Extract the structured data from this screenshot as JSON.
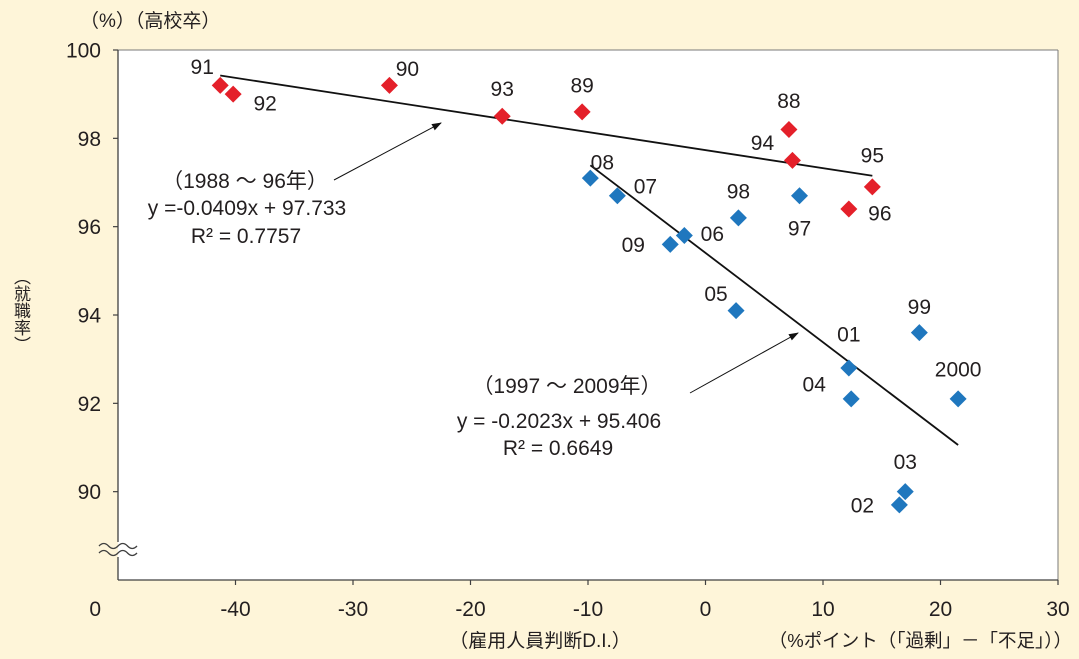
{
  "chart_data": {
    "type": "scatter",
    "unit_label": "（%）（高校卒）",
    "ylabel": "（就職率）",
    "xlabel": "（雇用人員判断D.I.）",
    "xunit_label": "（%ポイント（「過剰」－「不足」））",
    "xlim": [
      -50,
      30
    ],
    "ylim": [
      88,
      100
    ],
    "xticks": [
      -40,
      -30,
      -20,
      -10,
      0,
      10,
      20,
      30
    ],
    "yticks": [
      90,
      92,
      94,
      96,
      98,
      100
    ],
    "y_axis_break": true,
    "y_origin_label": "0",
    "grid": false,
    "series": [
      {
        "color": "#E4202A",
        "points": [
          {
            "label": "88",
            "x": 7.1,
            "y": 98.2
          },
          {
            "label": "89",
            "x": -10.5,
            "y": 98.6
          },
          {
            "label": "90",
            "x": -26.9,
            "y": 99.2
          },
          {
            "label": "91",
            "x": -41.3,
            "y": 99.2
          },
          {
            "label": "92",
            "x": -40.2,
            "y": 99.0
          },
          {
            "label": "93",
            "x": -17.3,
            "y": 98.5
          },
          {
            "label": "94",
            "x": 7.4,
            "y": 97.5
          },
          {
            "label": "95",
            "x": 14.2,
            "y": 96.9
          },
          {
            "label": "96",
            "x": 12.2,
            "y": 96.4
          }
        ],
        "trendline": {
          "period_label": "（1988 ～ 96年）",
          "equation": "y =-0.0409x + 97.733",
          "r2_label": "R² = 0.7757",
          "slope": -0.0409,
          "intercept": 97.733
        }
      },
      {
        "color": "#1F77BE",
        "points": [
          {
            "label": "97",
            "x": 8.0,
            "y": 96.7
          },
          {
            "label": "98",
            "x": 2.8,
            "y": 96.2
          },
          {
            "label": "99",
            "x": 18.2,
            "y": 93.6
          },
          {
            "label": "2000",
            "x": 21.5,
            "y": 92.1
          },
          {
            "label": "01",
            "x": 12.2,
            "y": 92.8
          },
          {
            "label": "02",
            "x": 16.5,
            "y": 89.7
          },
          {
            "label": "03",
            "x": 17.0,
            "y": 90.0
          },
          {
            "label": "04",
            "x": 12.4,
            "y": 92.1
          },
          {
            "label": "05",
            "x": 2.6,
            "y": 94.1
          },
          {
            "label": "06",
            "x": -1.8,
            "y": 95.8
          },
          {
            "label": "07",
            "x": -7.5,
            "y": 96.7
          },
          {
            "label": "08",
            "x": -9.8,
            "y": 97.1
          },
          {
            "label": "09",
            "x": -3.0,
            "y": 95.6
          }
        ],
        "trendline": {
          "period_label": "（1997 ～ 2009年）",
          "equation": "y = -0.2023x + 95.406",
          "r2_label": "R² = 0.6649",
          "slope": -0.2023,
          "intercept": 95.406
        }
      }
    ]
  }
}
